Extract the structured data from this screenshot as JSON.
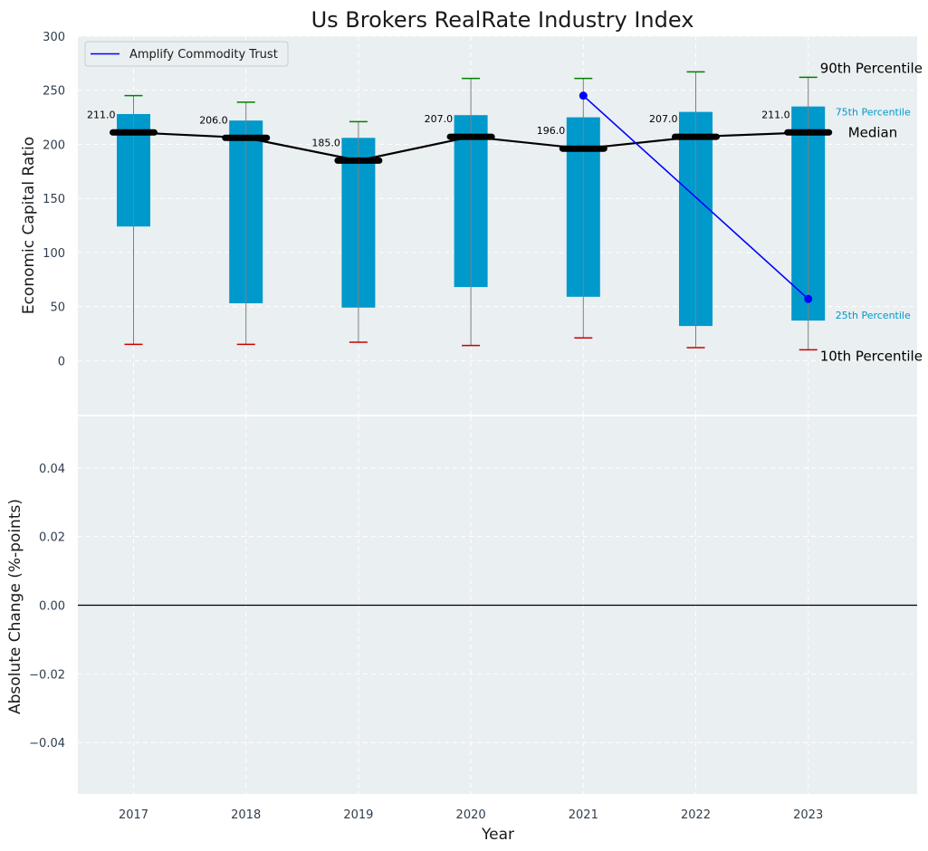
{
  "chart_data": {
    "type": "box",
    "title": "Us Brokers RealRate Industry Index",
    "xlabel": "Year",
    "ylabel": "Economic Capital Ratio",
    "ylabel2": "Absolute Change (%-points)",
    "categories": [
      "2017",
      "2018",
      "2019",
      "2020",
      "2021",
      "2022",
      "2023"
    ],
    "ylim": [
      -50,
      300
    ],
    "yticks": [
      0,
      50,
      100,
      150,
      200,
      250,
      300
    ],
    "ylim2": [
      -0.055,
      0.055
    ],
    "yticks2": [
      -0.04,
      -0.02,
      0.0,
      0.02,
      0.04
    ],
    "ytick2_labels": [
      "−0.04",
      "−0.02",
      "0.00",
      "0.02",
      "0.04"
    ],
    "percentiles": {
      "p10": [
        15,
        15,
        17,
        14,
        21,
        12,
        10
      ],
      "p25": [
        124,
        53,
        49,
        68,
        59,
        32,
        37
      ],
      "median": [
        211,
        206,
        185,
        207,
        196,
        207,
        211
      ],
      "p75": [
        228,
        222,
        206,
        227,
        225,
        230,
        235
      ],
      "p90": [
        245,
        239,
        221,
        261,
        261,
        267,
        262
      ]
    },
    "median_labels": [
      "211.0",
      "206.0",
      "185.0",
      "207.0",
      "196.0",
      "207.0",
      "211.0"
    ],
    "series": [
      {
        "name": "Amplify Commodity Trust",
        "x": [
          "2021",
          "2023"
        ],
        "values": [
          245,
          57
        ],
        "color": "#0000ff"
      }
    ],
    "change_series": [],
    "annotations": {
      "p90": "90th Percentile",
      "p75": "75th Percentile",
      "median": "Median",
      "p25": "25th Percentile",
      "p10": "10th Percentile"
    },
    "legend_position": "top-left",
    "grid": true,
    "colors": {
      "box": "#0099cc",
      "median_line": "#000000",
      "whisker_top": "#008000",
      "whisker_bottom": "#cc0000",
      "background": "#eaeff1",
      "company": "#0000ff"
    }
  }
}
